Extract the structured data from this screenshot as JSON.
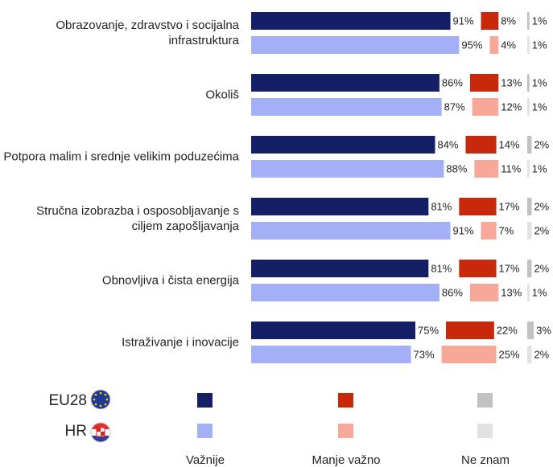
{
  "chart_data": {
    "type": "bar",
    "categories": [
      "Obrazovanje, zdravstvo i socijalna infrastruktura",
      "Okoliš",
      "Potpora malim i srednje velikim poduzećima",
      "Stručna izobrazba i osposobljavanje s ciljem zapošljavanja",
      "Obnovljiva i čista energija",
      "Istraživanje i inovacije"
    ],
    "legend_rows": [
      "EU28",
      "HR"
    ],
    "legend_columns": [
      "Važnije",
      "Manje važno",
      "Ne znam"
    ],
    "series": [
      {
        "color": "#141f66",
        "values": [
          91,
          86,
          84,
          81,
          81,
          75
        ],
        "value_labels": [
          "91%",
          "86%",
          "84%",
          "81%",
          "81%",
          "75%"
        ]
      },
      {
        "color": "#c8290b",
        "values": [
          8,
          13,
          14,
          17,
          17,
          22
        ],
        "value_labels": [
          "8%",
          "13%",
          "14%",
          "17%",
          "17%",
          "22%"
        ]
      },
      {
        "color": "#c2c2c2",
        "values": [
          1,
          1,
          2,
          2,
          2,
          3
        ],
        "value_labels": [
          "1%",
          "1%",
          "2%",
          "2%",
          "2%",
          "3%"
        ]
      },
      {
        "color": "#a3b0f5",
        "values": [
          95,
          87,
          88,
          91,
          86,
          73
        ],
        "value_labels": [
          "95%",
          "87%",
          "88%",
          "91%",
          "86%",
          "73%"
        ]
      },
      {
        "color": "#f7a898",
        "values": [
          4,
          12,
          11,
          7,
          13,
          25
        ],
        "value_labels": [
          "4%",
          "12%",
          "11%",
          "7%",
          "13%",
          "25%"
        ]
      },
      {
        "color": "#e2e2e2",
        "values": [
          1,
          1,
          1,
          2,
          1,
          2
        ],
        "value_labels": [
          "1%",
          "1%",
          "1%",
          "2%",
          "1%",
          "2%"
        ]
      }
    ]
  }
}
